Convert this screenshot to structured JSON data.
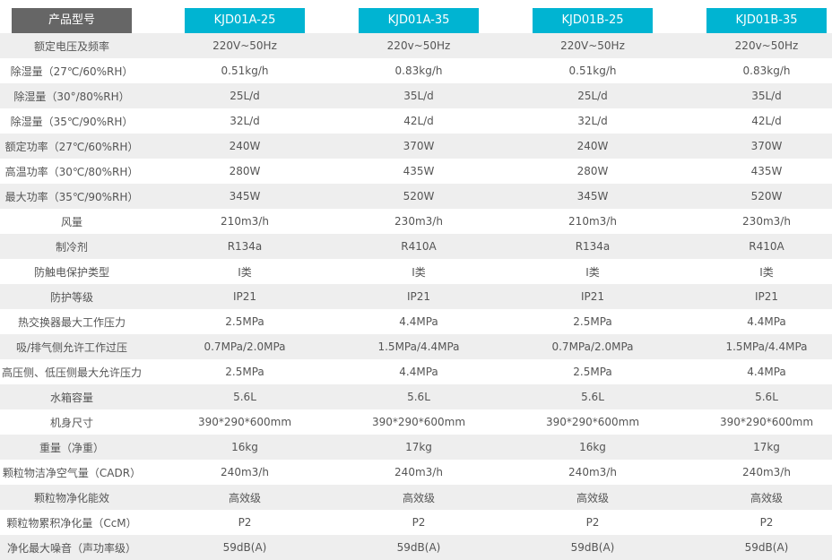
{
  "header": {
    "label": "产品型号",
    "models": [
      "KJD01A-25",
      "KJD01A-35",
      "KJD01B-25",
      "KJD01B-35"
    ]
  },
  "colors": {
    "header_label_bg": "#666666",
    "header_model_bg": "#00b4d2",
    "row_alt_bg": "#eeeeee"
  },
  "rows": [
    {
      "label": "额定电压及频率",
      "values": [
        "220V~50Hz",
        "220v~50Hz",
        "220V~50Hz",
        "220v~50Hz"
      ]
    },
    {
      "label": "除湿量（27℃/60%RH）",
      "values": [
        "0.51kg/h",
        "0.83kg/h",
        "0.51kg/h",
        "0.83kg/h"
      ]
    },
    {
      "label": "除湿量（30°/80%RH）",
      "values": [
        "25L/d",
        "35L/d",
        "25L/d",
        "35L/d"
      ]
    },
    {
      "label": "除湿量（35℃/90%RH）",
      "values": [
        "32L/d",
        "42L/d",
        "32L/d",
        "42L/d"
      ]
    },
    {
      "label": "额定功率（27℃/60%RH）",
      "values": [
        "240W",
        "370W",
        "240W",
        "370W"
      ]
    },
    {
      "label": "高温功率（30℃/80%RH）",
      "values": [
        "280W",
        "435W",
        "280W",
        "435W"
      ]
    },
    {
      "label": "最大功率（35℃/90%RH）",
      "values": [
        "345W",
        "520W",
        "345W",
        "520W"
      ]
    },
    {
      "label": "风量",
      "values": [
        "210m3/h",
        "230m3/h",
        "210m3/h",
        "230m3/h"
      ]
    },
    {
      "label": "制冷剂",
      "values": [
        "R134a",
        "R410A",
        "R134a",
        "R410A"
      ]
    },
    {
      "label": "防触电保护类型",
      "values": [
        "I类",
        "I类",
        "I类",
        "I类"
      ]
    },
    {
      "label": "防护等级",
      "values": [
        "IP21",
        "IP21",
        "IP21",
        "IP21"
      ]
    },
    {
      "label": "热交换器最大工作压力",
      "values": [
        "2.5MPa",
        "4.4MPa",
        "2.5MPa",
        "4.4MPa"
      ]
    },
    {
      "label": "吸/排气侧允许工作过压",
      "values": [
        "0.7MPa/2.0MPa",
        "1.5MPa/4.4MPa",
        "0.7MPa/2.0MPa",
        "1.5MPa/4.4MPa"
      ]
    },
    {
      "label": "高压侧、低压侧最大允许压力",
      "values": [
        "2.5MPa",
        "4.4MPa",
        "2.5MPa",
        "4.4MPa"
      ]
    },
    {
      "label": "水箱容量",
      "values": [
        "5.6L",
        "5.6L",
        "5.6L",
        "5.6L"
      ]
    },
    {
      "label": "机身尺寸",
      "values": [
        "390*290*600mm",
        "390*290*600mm",
        "390*290*600mm",
        "390*290*600mm"
      ]
    },
    {
      "label": "重量（净重）",
      "values": [
        "16kg",
        "17kg",
        "16kg",
        "17kg"
      ]
    },
    {
      "label": "颗粒物洁净空气量（CADR）",
      "values": [
        "240m3/h",
        "240m3/h",
        "240m3/h",
        "240m3/h"
      ]
    },
    {
      "label": "颗粒物净化能效",
      "values": [
        "高效级",
        "高效级",
        "高效级",
        "高效级"
      ]
    },
    {
      "label": "颗粒物累积净化量（CcM）",
      "values": [
        "P2",
        "P2",
        "P2",
        "P2"
      ]
    },
    {
      "label": "净化最大噪音（声功率级）",
      "values": [
        "59dB(A)",
        "59dB(A)",
        "59dB(A)",
        "59dB(A)"
      ]
    }
  ]
}
